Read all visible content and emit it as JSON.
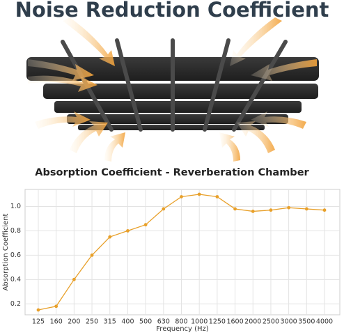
{
  "chart_data": {
    "type": "line",
    "title": "Noise Reduction Coefficient",
    "subtitle": "Absorption Coefficient - Reverberation Chamber",
    "x_label": "Frequency (Hz)",
    "y_label": "Absorption Coefficient",
    "categories": [
      "125",
      "160",
      "200",
      "250",
      "315",
      "400",
      "500",
      "630",
      "800",
      "1000",
      "1250",
      "1600",
      "2000",
      "2500",
      "3000",
      "3500",
      "4000"
    ],
    "values": [
      0.15,
      0.18,
      0.4,
      0.6,
      0.75,
      0.8,
      0.85,
      0.98,
      1.08,
      1.1,
      1.08,
      0.98,
      0.96,
      0.97,
      0.99,
      0.98,
      0.97
    ],
    "color": "#e8a02a",
    "ylim": [
      0.11,
      1.14
    ],
    "yticks": [
      0.2,
      0.4,
      0.6,
      0.8,
      {
        "value": 1,
        "label": "1.0"
      }
    ],
    "grid": true
  }
}
